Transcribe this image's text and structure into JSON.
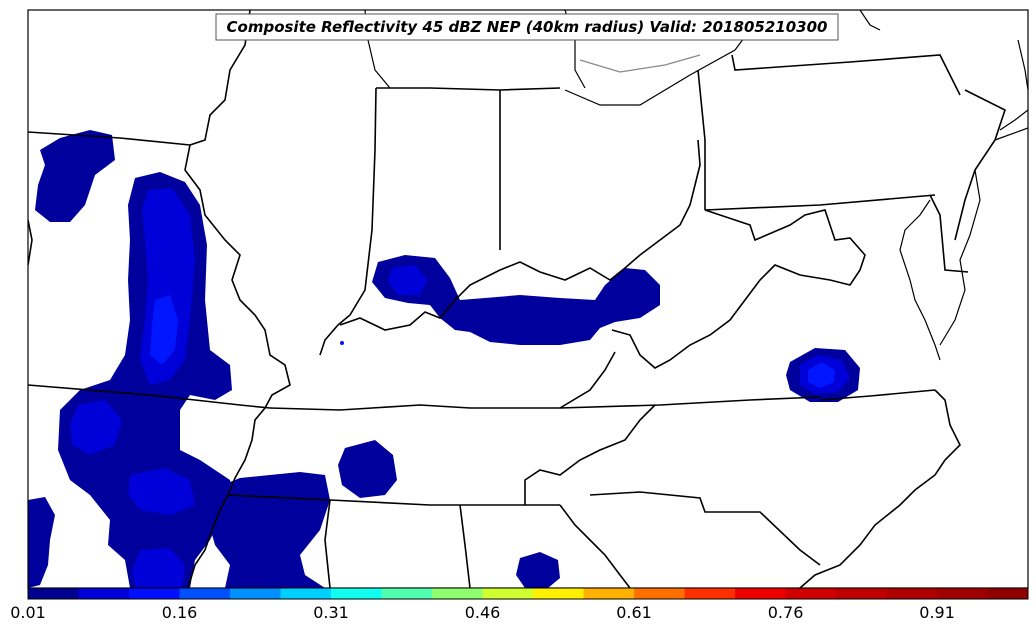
{
  "title": "Composite Reflectivity 45 dBZ NEP (40km radius) Valid: 201805210300",
  "colorbar": {
    "min": 0.01,
    "max": 1.0,
    "tick_labels": [
      "0.01",
      "0.16",
      "0.31",
      "0.46",
      "0.61",
      "0.76",
      "0.91"
    ],
    "tick_values": [
      0.01,
      0.16,
      0.31,
      0.46,
      0.61,
      0.76,
      0.91
    ],
    "levels": [
      0.01,
      0.06,
      0.11,
      0.16,
      0.21,
      0.26,
      0.31,
      0.36,
      0.41,
      0.46,
      0.51,
      0.56,
      0.61,
      0.66,
      0.71,
      0.76,
      0.81,
      0.86,
      0.91,
      0.96,
      1.0
    ],
    "colors": [
      "#00008f",
      "#0000d9",
      "#0010ff",
      "#0050ff",
      "#0090ff",
      "#00d0ff",
      "#10ffef",
      "#50ffaf",
      "#90ff6f",
      "#d0ff2f",
      "#ffef00",
      "#ffb000",
      "#ff7000",
      "#ff3000",
      "#ef0000",
      "#d00000",
      "#bf0000",
      "#af0000",
      "#9f0000",
      "#8f0000"
    ]
  },
  "colors": {
    "background": "#ffffff",
    "border": "#000000",
    "prob_low": "#00009c",
    "prob_mid": "#0000d8",
    "prob_high": "#0016ff"
  }
}
